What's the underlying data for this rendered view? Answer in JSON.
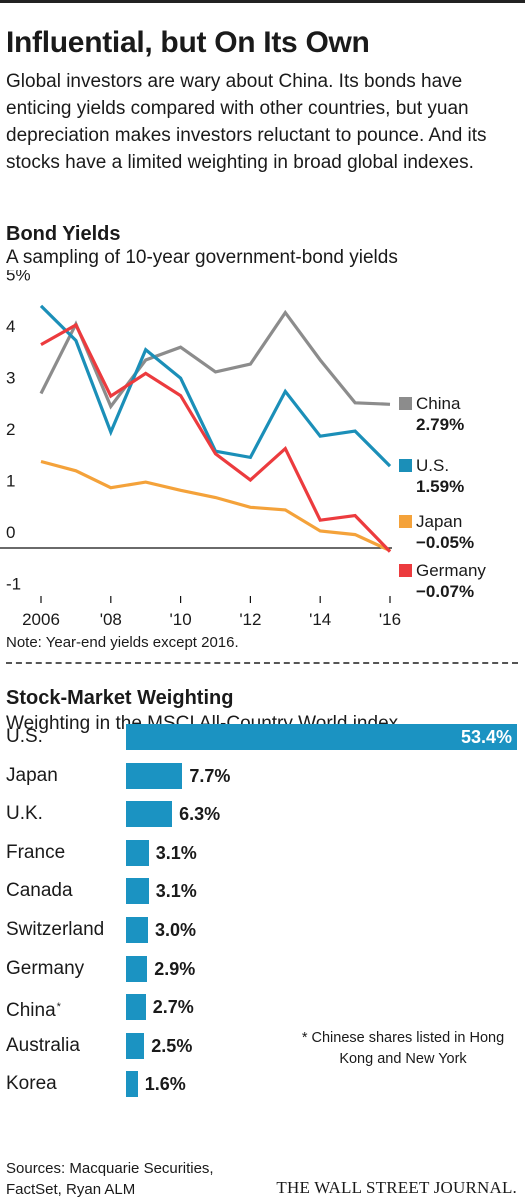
{
  "headline": "Influential, but On Its Own",
  "dek": "Global investors are wary about China. Its bonds have enticing yields compared with other countries, but yuan depreciation makes investors reluctant to pounce. And its stocks have a limited weighting in broad global indexes.",
  "colors": {
    "china": "#8c8c8c",
    "us": "#1b8fb8",
    "japan": "#f4a23a",
    "germany": "#ec3b3e",
    "bar": "#1b93c2"
  },
  "chart_data": [
    {
      "type": "line",
      "title": "Bond Yields",
      "subtitle": "A sampling of 10-year government-bond yields",
      "note": "Note: Year-end yields except 2016.",
      "x": [
        2006,
        2007,
        2008,
        2009,
        2010,
        2011,
        2012,
        2013,
        2014,
        2015,
        2016
      ],
      "xticks": [
        2006,
        2008,
        2010,
        2012,
        2014,
        2016
      ],
      "xticklabels": [
        "2006",
        "'08",
        "'10",
        "'12",
        "'14",
        "'16"
      ],
      "ylim": [
        -1,
        5
      ],
      "yticklabels": [
        "5%",
        "4",
        "3",
        "2",
        "1",
        "0",
        "-1"
      ],
      "series": [
        {
          "name": "China",
          "label_value": "2.79%",
          "color": "#8c8c8c",
          "values": [
            3.0,
            4.35,
            2.75,
            3.65,
            3.9,
            3.42,
            3.57,
            4.57,
            3.65,
            2.82,
            2.79
          ]
        },
        {
          "name": "U.S.",
          "label_value": "1.59%",
          "color": "#1b8fb8",
          "values": [
            4.7,
            4.03,
            2.25,
            3.85,
            3.3,
            1.88,
            1.76,
            3.04,
            2.17,
            2.27,
            1.59
          ]
        },
        {
          "name": "Japan",
          "label_value": "−0.05%",
          "color": "#f4a23a",
          "values": [
            1.68,
            1.5,
            1.17,
            1.28,
            1.12,
            0.98,
            0.79,
            0.74,
            0.33,
            0.26,
            -0.05
          ]
        },
        {
          "name": "Germany",
          "label_value": "−0.07%",
          "color": "#ec3b3e",
          "values": [
            3.95,
            4.33,
            2.95,
            3.39,
            2.96,
            1.83,
            1.32,
            1.93,
            0.54,
            0.63,
            -0.07
          ]
        }
      ]
    },
    {
      "type": "bar",
      "title": "Stock-Market Weighting",
      "subtitle": "Weighting in the MSCI All-Country World index",
      "categories": [
        "U.S.",
        "Japan",
        "U.K.",
        "France",
        "Canada",
        "Switzerland",
        "Germany",
        "China",
        "Australia",
        "Korea"
      ],
      "values": [
        53.4,
        7.7,
        6.3,
        3.1,
        3.1,
        3.0,
        2.9,
        2.7,
        2.5,
        1.6
      ],
      "value_labels": [
        "53.4%",
        "7.7%",
        "6.3%",
        "3.1%",
        "3.1%",
        "3.0%",
        "2.9%",
        "2.7%",
        "2.5%",
        "1.6%"
      ],
      "footnote_marker": "*",
      "footnote_category": "China",
      "footnote": "* Chinese shares listed in Hong Kong and New York"
    }
  ],
  "sources": "Sources: Macquarie Securities, FactSet, Ryan ALM",
  "logo": "THE WALL STREET JOURNAL."
}
